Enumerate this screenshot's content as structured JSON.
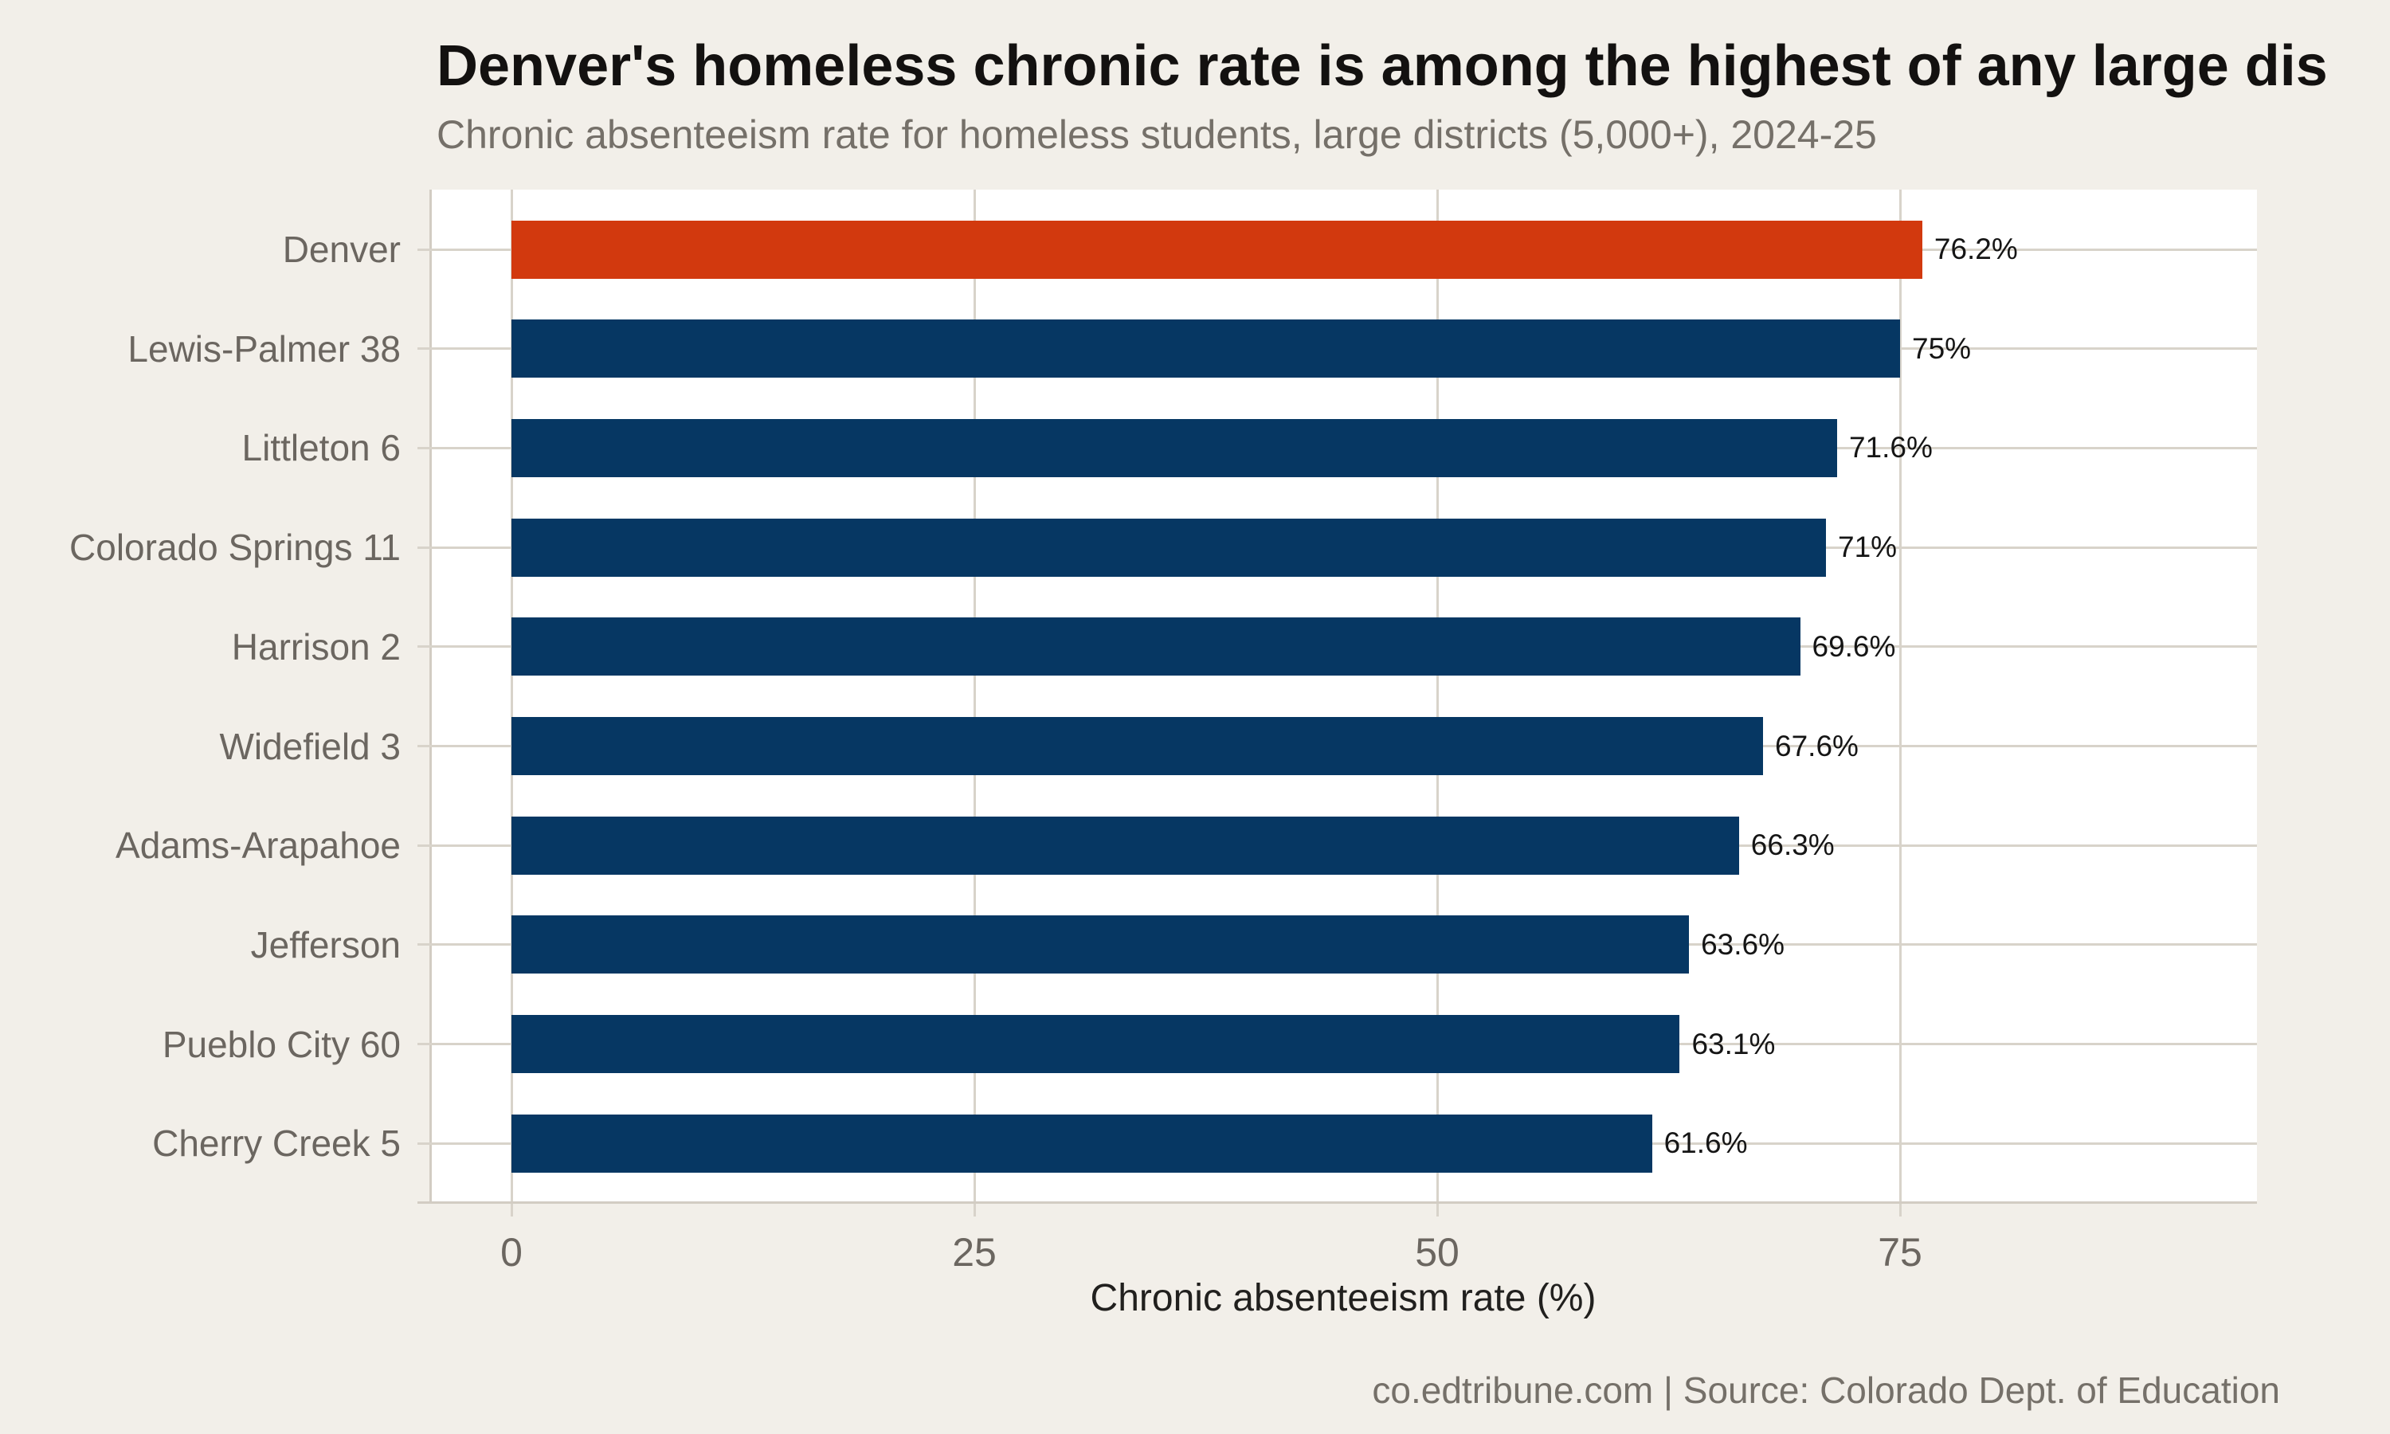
{
  "chart_data": {
    "type": "bar",
    "orientation": "horizontal",
    "title": "Denver's homeless chronic rate is among the highest of any large dis",
    "subtitle": "Chronic absenteeism rate for homeless students, large districts (5,000+), 2024-25",
    "xlabel": "Chronic absenteeism rate (%)",
    "caption": "co.edtribune.com | Source: Colorado Dept. of Education",
    "categories": [
      "Denver",
      "Lewis-Palmer 38",
      "Littleton 6",
      "Colorado Springs 11",
      "Harrison 2",
      "Widefield 3",
      "Adams-Arapahoe",
      "Jefferson",
      "Pueblo City 60",
      "Cherry Creek 5"
    ],
    "values": [
      76.2,
      75,
      71.6,
      71,
      69.6,
      67.6,
      66.3,
      63.6,
      63.1,
      61.6
    ],
    "value_labels": [
      "76.2%",
      "75%",
      "71.6%",
      "71%",
      "69.6%",
      "67.6%",
      "66.3%",
      "63.6%",
      "63.1%",
      "61.6%"
    ],
    "x_ticks": [
      0,
      25,
      50,
      75
    ],
    "xlim": [
      -4.4,
      94.3
    ],
    "highlight_category": "Denver",
    "grid": true,
    "legend_position": "none",
    "colors": {
      "highlight_bar": "#d2390e",
      "bar": "#063763",
      "background": "#f2efe9",
      "plot_background": "#ffffff",
      "gridline": "#d8d3ca",
      "title_text": "#131110",
      "subtitle_text": "#757069",
      "axis_text": "#6b6660",
      "value_text": "#151515"
    }
  }
}
